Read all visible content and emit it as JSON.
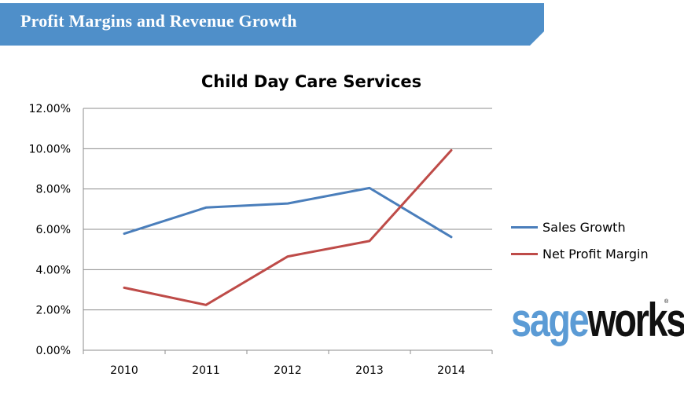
{
  "banner": {
    "title": "Profit Margins and Revenue Growth",
    "color": "#4f8fc9"
  },
  "logo": {
    "part1": "sage",
    "part2": "works",
    "color1": "#5b9bd5",
    "color2": "#111111",
    "reg_mark": "®"
  },
  "chart_data": {
    "type": "line",
    "title": "Child Day Care Services",
    "categories": [
      "2010",
      "2011",
      "2012",
      "2013",
      "2014"
    ],
    "series": [
      {
        "name": "Sales Growth",
        "values": [
          5.78,
          7.08,
          7.28,
          8.05,
          5.62
        ],
        "color": "#4a7ebb"
      },
      {
        "name": "Net Profit Margin",
        "values": [
          3.1,
          2.25,
          4.65,
          5.42,
          9.92
        ],
        "color": "#be4b48"
      }
    ],
    "ylim": [
      0,
      12
    ],
    "yticks": [
      "0.00%",
      "2.00%",
      "4.00%",
      "6.00%",
      "8.00%",
      "10.00%",
      "12.00%"
    ],
    "grid": true,
    "legend": "right"
  }
}
